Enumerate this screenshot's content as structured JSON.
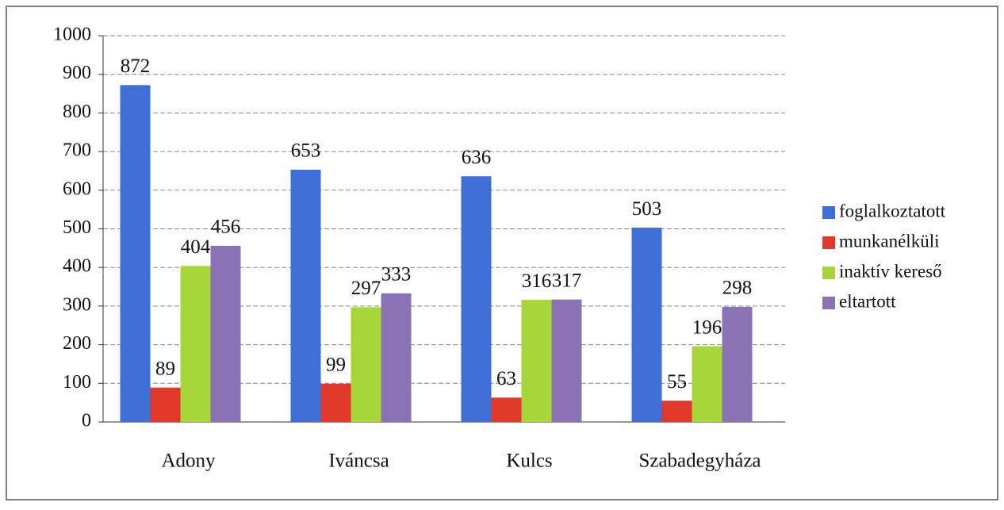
{
  "chart_data": {
    "type": "bar",
    "categories": [
      "Adony",
      "Iváncsa",
      "Kulcs",
      "Szabadegyháza"
    ],
    "series": [
      {
        "name": "foglalkoztatott",
        "color": "#3d6fd6",
        "values": [
          872,
          653,
          636,
          503
        ]
      },
      {
        "name": "munkanélküli",
        "color": "#e0392b",
        "values": [
          89,
          99,
          63,
          55
        ]
      },
      {
        "name": "inaktív kereső",
        "color": "#a6d63a",
        "values": [
          404,
          297,
          316,
          196
        ]
      },
      {
        "name": "eltartott",
        "color": "#8a73b5",
        "values": [
          456,
          333,
          317,
          298
        ]
      }
    ],
    "ylim": [
      0,
      1000
    ],
    "yticks": [
      0,
      100,
      200,
      300,
      400,
      500,
      600,
      700,
      800,
      900,
      1000
    ],
    "grid": true,
    "legend": "right"
  }
}
